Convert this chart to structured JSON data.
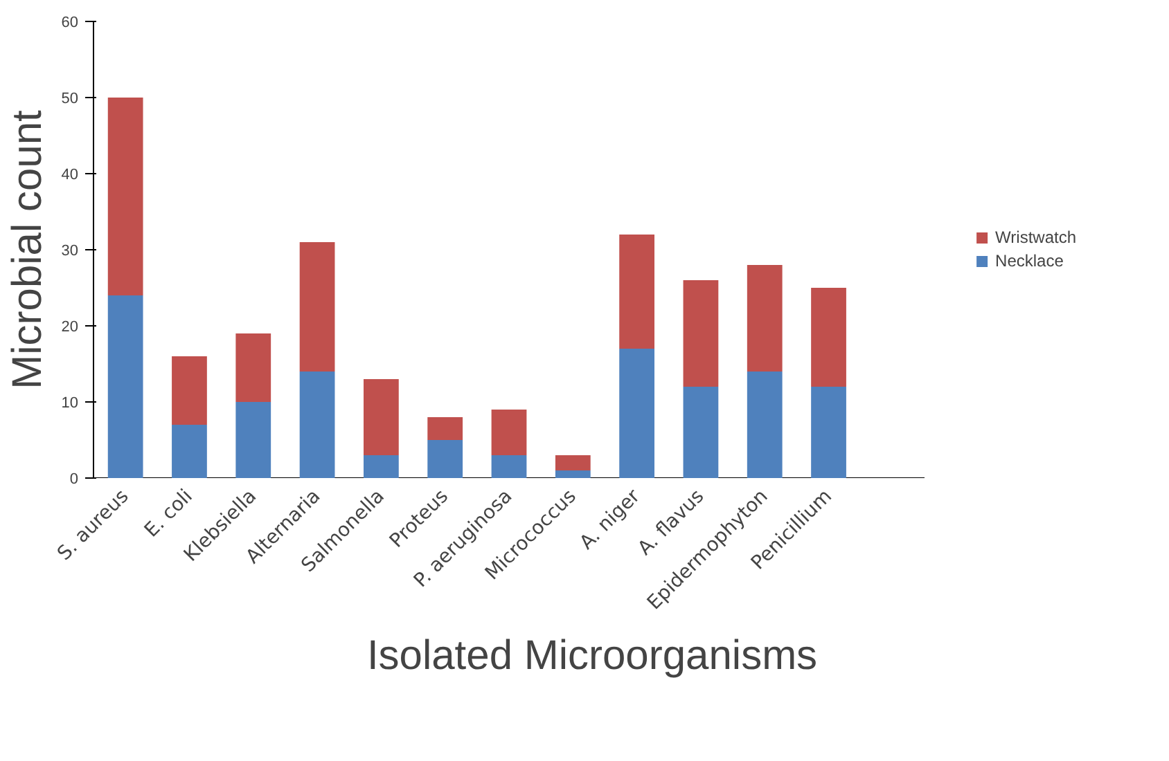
{
  "chart_data": {
    "type": "bar",
    "stacked": true,
    "xlabel": "Isolated Microorganisms",
    "ylabel": "Microbial count",
    "categories": [
      "S. aureus",
      "E. coli",
      "Klebsiella",
      "Alternaria",
      "Salmonella",
      "Proteus",
      "P. aeruginosa",
      "Micrococcus",
      "A. niger",
      "A. flavus",
      "Epidermophyton",
      "Penicillium",
      null
    ],
    "series": [
      {
        "name": "Necklace",
        "color": "#4f81bd",
        "values": [
          24,
          7,
          10,
          14,
          3,
          5,
          3,
          1,
          17,
          12,
          14,
          12,
          null
        ]
      },
      {
        "name": "Wristwatch",
        "color": "#c0504d",
        "values": [
          26,
          9,
          9,
          17,
          10,
          3,
          6,
          2,
          15,
          14,
          14,
          13,
          null
        ]
      }
    ],
    "ylim": [
      0,
      60
    ],
    "yticks": [
      0,
      10,
      20,
      30,
      40,
      50,
      60
    ],
    "grid": false,
    "legend": "right"
  }
}
